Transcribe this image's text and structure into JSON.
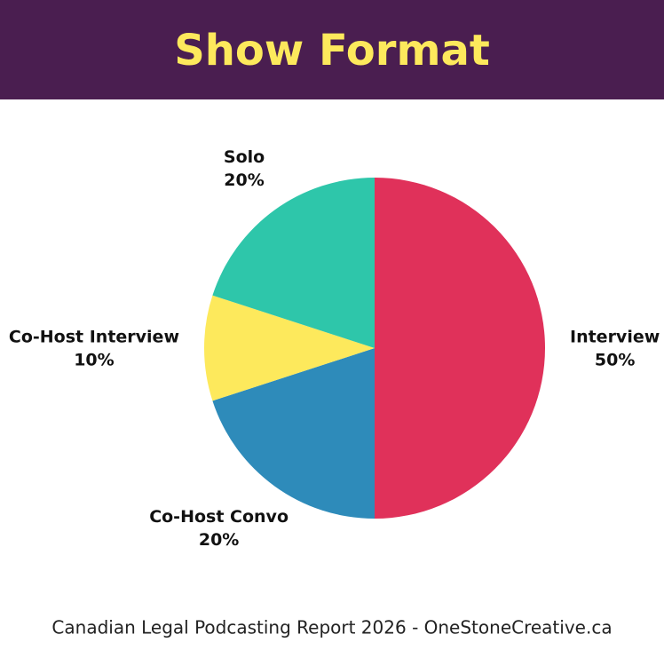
{
  "chart_data": {
    "type": "pie",
    "title": "Show Format",
    "categories": [
      "Interview",
      "Co-Host Convo",
      "Co-Host Interview",
      "Solo"
    ],
    "values": [
      50,
      20,
      10,
      20
    ],
    "value_labels": [
      "50%",
      "20%",
      "10%",
      "20%"
    ],
    "colors": [
      "#e0315a",
      "#2e8bba",
      "#fde95c",
      "#2ec6aa"
    ]
  },
  "footer": "Canadian Legal Podcasting Report 2026 - OneStoneCreative.ca"
}
